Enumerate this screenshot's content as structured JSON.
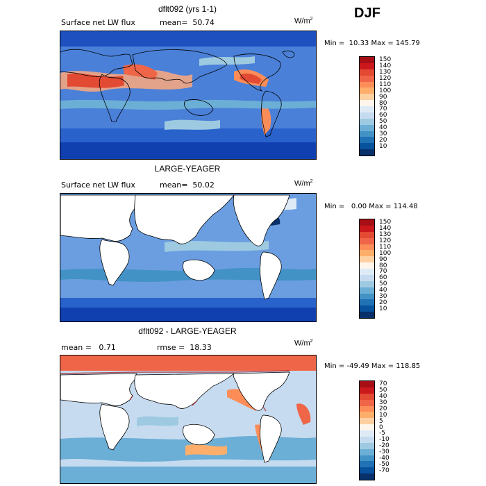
{
  "season": "DJF",
  "units": "W/m",
  "units_exp": "2",
  "panels": [
    {
      "title": "dflt092 (yrs 1-1)",
      "left_text": "Surface net LW flux",
      "right_text": "mean=  50.74",
      "minmax": "Min =  10.33 Max = 145.79",
      "colorbar_labels": [
        "150",
        "140",
        "130",
        "120",
        "110",
        "100",
        "90",
        "80",
        "70",
        "60",
        "50",
        "40",
        "30",
        "20",
        "10"
      ],
      "colorbar_colors": [
        "#a50f15",
        "#cb181d",
        "#e34a33",
        "#ef6548",
        "#fc8d59",
        "#fdae6b",
        "#fdd0a2",
        "#fff5eb",
        "#deebf7",
        "#c6dbef",
        "#9ecae1",
        "#6baed6",
        "#4292c6",
        "#2171b5",
        "#08519c",
        "#08306b"
      ]
    },
    {
      "title": "LARGE-YEAGER",
      "left_text": "Surface net LW flux",
      "right_text": "mean=  50.02",
      "minmax": "Min =   0.00 Max = 114.48",
      "colorbar_labels": [
        "150",
        "140",
        "130",
        "120",
        "110",
        "100",
        "90",
        "80",
        "70",
        "60",
        "50",
        "40",
        "30",
        "20",
        "10"
      ],
      "colorbar_colors": [
        "#a50f15",
        "#cb181d",
        "#e34a33",
        "#ef6548",
        "#fc8d59",
        "#fdae6b",
        "#fdd0a2",
        "#fff5eb",
        "#deebf7",
        "#c6dbef",
        "#9ecae1",
        "#6baed6",
        "#4292c6",
        "#2171b5",
        "#08519c",
        "#08306b"
      ]
    },
    {
      "title": "dflt092 - LARGE-YEAGER",
      "left_text": "mean =   0.71",
      "right_text": "rmse =  18.33",
      "minmax": "Min = -49.49 Max = 118.85",
      "colorbar_labels": [
        "70",
        "50",
        "40",
        "30",
        "20",
        "10",
        "5",
        "0",
        "-5",
        "-10",
        "-20",
        "-30",
        "-40",
        "-50",
        "-70"
      ],
      "colorbar_colors": [
        "#a50f15",
        "#cb181d",
        "#e34a33",
        "#ef6548",
        "#fc8d59",
        "#fdae6b",
        "#fdd0a2",
        "#fff5eb",
        "#deebf7",
        "#c6dbef",
        "#9ecae1",
        "#6baed6",
        "#4292c6",
        "#2171b5",
        "#08519c",
        "#08306b"
      ]
    }
  ]
}
